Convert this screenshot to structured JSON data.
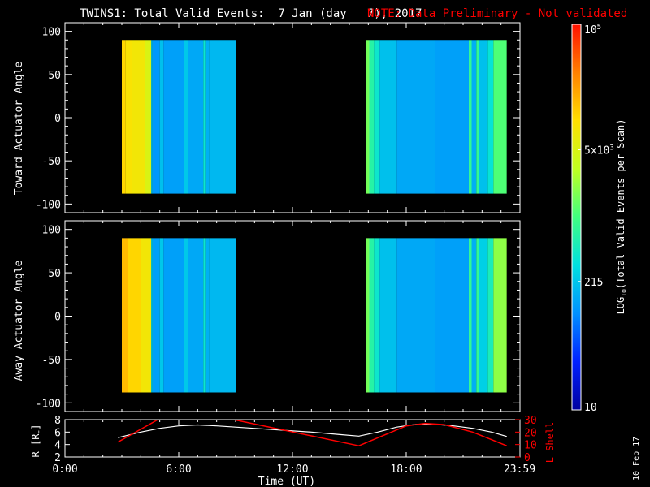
{
  "title": "TWINS1: Total Valid Events:  7 Jan (day   7), 2017",
  "note": "NOTE: Data Preliminary - Not validated",
  "date_stamp": "10 Feb 17",
  "colors": {
    "background": "#000000",
    "axes": "#ffffff",
    "note": "#ff0000",
    "r_line": "#ffffff",
    "lshell_line": "#ff0000"
  },
  "colorbar": {
    "label": "LOG10(Total Valid Events per Scan)",
    "label_main": "LOG",
    "label_sub": "10",
    "label_rest": "(Total Valid Events per Scan)",
    "scale": "log",
    "range": [
      10,
      100000
    ],
    "colormap": [
      "#0000a0",
      "#0020ff",
      "#0090ff",
      "#00e0e0",
      "#40ff80",
      "#c0ff20",
      "#ffe000",
      "#ff8000",
      "#ff1000"
    ],
    "ticks": [
      {
        "value": 10,
        "label": "10"
      },
      {
        "value": 215,
        "label": "215"
      },
      {
        "value": 5000,
        "label": "5x10",
        "exp": "3"
      },
      {
        "value": 100000,
        "label": "10",
        "exp": "5"
      }
    ]
  },
  "chart_data": [
    {
      "type": "heatmap",
      "name": "toward",
      "ylabel": "Toward Actuator Angle",
      "xlim": [
        0,
        24
      ],
      "ylim": [
        -110,
        110
      ],
      "yticks": [
        100,
        50,
        0,
        -50,
        -100
      ],
      "data_y_range": [
        -88,
        90
      ],
      "segments": [
        {
          "x_range": [
            3.0,
            9.0
          ],
          "columns": [
            {
              "x0": 3.0,
              "x1": 3.2,
              "level": 4.05
            },
            {
              "x0": 3.2,
              "x1": 3.55,
              "level": 3.95
            },
            {
              "x0": 3.55,
              "x1": 4.2,
              "level": 3.9
            },
            {
              "x0": 4.2,
              "x1": 4.55,
              "level": 3.7
            },
            {
              "x0": 4.55,
              "x1": 4.62,
              "level": 2.3
            },
            {
              "x0": 4.62,
              "x1": 5.0,
              "level": 2.05
            },
            {
              "x0": 5.0,
              "x1": 5.2,
              "level": 2.3
            },
            {
              "x0": 5.2,
              "x1": 6.3,
              "level": 2.1
            },
            {
              "x0": 6.3,
              "x1": 6.5,
              "level": 2.35
            },
            {
              "x0": 6.5,
              "x1": 7.3,
              "level": 2.15
            },
            {
              "x0": 7.3,
              "x1": 7.4,
              "level": 2.6
            },
            {
              "x0": 7.4,
              "x1": 7.6,
              "level": 2.2
            },
            {
              "x0": 7.6,
              "x1": 9.0,
              "level": 2.25
            }
          ]
        },
        {
          "x_range": [
            15.9,
            23.3
          ],
          "columns": [
            {
              "x0": 15.9,
              "x1": 16.05,
              "level": 3.2
            },
            {
              "x0": 16.05,
              "x1": 16.3,
              "level": 2.8
            },
            {
              "x0": 16.3,
              "x1": 16.6,
              "level": 2.6
            },
            {
              "x0": 16.6,
              "x1": 17.5,
              "level": 2.3
            },
            {
              "x0": 17.5,
              "x1": 19.5,
              "level": 2.15
            },
            {
              "x0": 19.5,
              "x1": 21.3,
              "level": 2.1
            },
            {
              "x0": 21.3,
              "x1": 21.45,
              "level": 2.9
            },
            {
              "x0": 21.45,
              "x1": 21.7,
              "level": 2.2
            },
            {
              "x0": 21.7,
              "x1": 21.85,
              "level": 2.9
            },
            {
              "x0": 21.85,
              "x1": 22.3,
              "level": 2.3
            },
            {
              "x0": 22.3,
              "x1": 22.6,
              "level": 2.55
            },
            {
              "x0": 22.6,
              "x1": 23.3,
              "level": 3.05
            }
          ]
        }
      ]
    },
    {
      "type": "heatmap",
      "name": "away",
      "ylabel": "Away Actuator Angle",
      "xlim": [
        0,
        24
      ],
      "ylim": [
        -110,
        110
      ],
      "yticks": [
        100,
        50,
        0,
        -50,
        -100
      ],
      "data_y_range": [
        -88,
        90
      ],
      "segments": [
        {
          "x_range": [
            3.0,
            9.0
          ],
          "columns": [
            {
              "x0": 3.0,
              "x1": 3.3,
              "level": 4.2
            },
            {
              "x0": 3.3,
              "x1": 4.0,
              "level": 4.05
            },
            {
              "x0": 4.0,
              "x1": 4.55,
              "level": 3.9
            },
            {
              "x0": 4.55,
              "x1": 4.62,
              "level": 2.4
            },
            {
              "x0": 4.62,
              "x1": 5.0,
              "level": 2.1
            },
            {
              "x0": 5.0,
              "x1": 5.2,
              "level": 2.35
            },
            {
              "x0": 5.2,
              "x1": 6.3,
              "level": 2.1
            },
            {
              "x0": 6.3,
              "x1": 6.5,
              "level": 2.35
            },
            {
              "x0": 6.5,
              "x1": 7.3,
              "level": 2.15
            },
            {
              "x0": 7.3,
              "x1": 7.4,
              "level": 2.6
            },
            {
              "x0": 7.4,
              "x1": 7.6,
              "level": 2.2
            },
            {
              "x0": 7.6,
              "x1": 9.0,
              "level": 2.25
            }
          ]
        },
        {
          "x_range": [
            15.9,
            23.3
          ],
          "columns": [
            {
              "x0": 15.9,
              "x1": 16.05,
              "level": 3.2
            },
            {
              "x0": 16.05,
              "x1": 16.3,
              "level": 2.8
            },
            {
              "x0": 16.3,
              "x1": 16.6,
              "level": 2.6
            },
            {
              "x0": 16.6,
              "x1": 17.5,
              "level": 2.3
            },
            {
              "x0": 17.5,
              "x1": 19.5,
              "level": 2.15
            },
            {
              "x0": 19.5,
              "x1": 21.3,
              "level": 2.1
            },
            {
              "x0": 21.3,
              "x1": 21.45,
              "level": 2.9
            },
            {
              "x0": 21.45,
              "x1": 21.7,
              "level": 2.2
            },
            {
              "x0": 21.7,
              "x1": 21.85,
              "level": 2.9
            },
            {
              "x0": 21.85,
              "x1": 22.3,
              "level": 2.4
            },
            {
              "x0": 22.3,
              "x1": 22.6,
              "level": 2.7
            },
            {
              "x0": 22.6,
              "x1": 23.3,
              "level": 3.3
            }
          ]
        }
      ]
    },
    {
      "type": "line",
      "name": "orbit",
      "xlabel": "Time (UT)",
      "xlim": [
        0,
        24
      ],
      "xticks": [
        {
          "value": 0,
          "label": "0:00"
        },
        {
          "value": 6,
          "label": "6:00"
        },
        {
          "value": 12,
          "label": "12:00"
        },
        {
          "value": 18,
          "label": "18:00"
        },
        {
          "value": 23.98,
          "label": "23:59"
        }
      ],
      "ylabel_left": "R [R",
      "ylabel_left_sub": "E",
      "ylabel_left_end": "]",
      "ylim_left": [
        2,
        8
      ],
      "yticks_left": [
        2,
        4,
        6,
        8
      ],
      "ylabel_right": "L Shell",
      "ylim_right": [
        0,
        30
      ],
      "yticks_right": [
        0,
        10,
        20,
        30
      ],
      "series": [
        {
          "axis": "left",
          "color": "#ffffff",
          "points": [
            [
              2.8,
              5.1
            ],
            [
              4.0,
              6.0
            ],
            [
              5.0,
              6.6
            ],
            [
              6.0,
              7.0
            ],
            [
              7.0,
              7.15
            ],
            [
              8.0,
              7.0
            ],
            [
              9.0,
              6.8
            ],
            [
              11.0,
              6.4
            ],
            [
              13.0,
              6.0
            ],
            [
              14.5,
              5.6
            ],
            [
              15.5,
              5.35
            ],
            [
              16.5,
              6.0
            ],
            [
              17.5,
              6.8
            ],
            [
              18.5,
              7.25
            ],
            [
              19.5,
              7.25
            ],
            [
              20.5,
              7.0
            ],
            [
              21.5,
              6.6
            ],
            [
              22.5,
              6.0
            ],
            [
              23.3,
              5.3
            ]
          ]
        },
        {
          "axis": "right",
          "color": "#ff0000",
          "segments": [
            [
              [
                2.8,
                12
              ],
              [
                4.9,
                30
              ]
            ],
            [
              [
                8.9,
                30
              ],
              [
                15.5,
                9
              ]
            ],
            [
              [
                15.5,
                9
              ],
              [
                18.0,
                25
              ],
              [
                19.0,
                27
              ],
              [
                20.0,
                26
              ],
              [
                21.5,
                20
              ],
              [
                23.3,
                9
              ]
            ]
          ]
        }
      ]
    }
  ]
}
